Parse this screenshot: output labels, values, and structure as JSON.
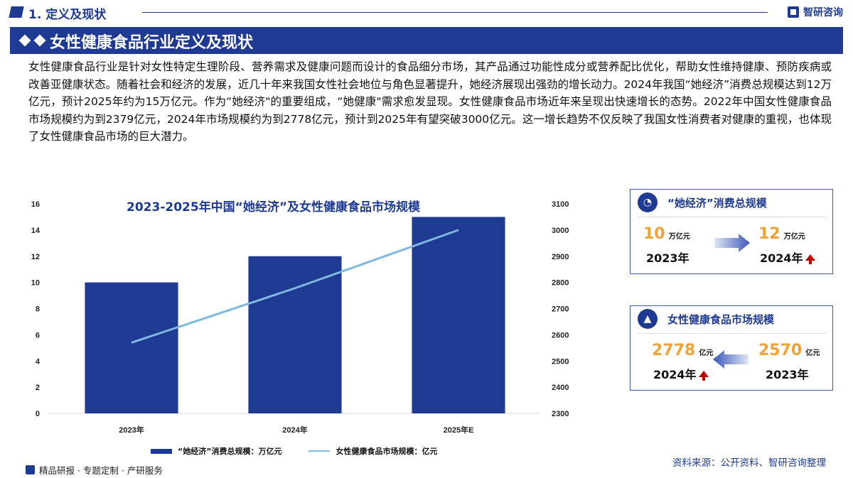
{
  "header": {
    "section_title": "1. 定义及现状",
    "brand": "智研咨询",
    "band_title": "女性健康食品行业定义及现状"
  },
  "paragraph": "女性健康食品行业是针对女性特定生理阶段、营养需求及健康问题而设计的食品细分市场，其产品通过功能性成分或营养配比优化，帮助女性维持健康、预防疾病或改善亚健康状态。随着社会和经济的发展，近几十年来我国女性社会地位与角色显著提升，她经济展现出强劲的增长动力。2024年我国“她经济”消费总规模达到12万亿元，预计2025年约为15万亿元。作为“她经济\"的重要组成，“她健康\"需求愈发显现。女性健康食品市场近年来呈现出快速增长的态势。2022年中国女性健康食品市场规模约为到2379亿元，2024年市场规模约为到2778亿元，预计到2025年有望突破3000亿元。这一增长趋势不仅反映了我国女性消费者对健康的重视，也体现了女性健康食品市场的巨大潜力。",
  "chart_data": {
    "type": "bar",
    "title": "2023-2025年中国“她经济”及女性健康食品市场规模",
    "categories": [
      "2023年",
      "2024年",
      "2025年E"
    ],
    "series": [
      {
        "name": "“她经济”消费总规模：万亿元",
        "type": "bar",
        "axis": "left",
        "values": [
          10,
          12,
          15
        ]
      },
      {
        "name": "女性健康食品市场规模：亿元",
        "type": "line",
        "axis": "right",
        "values": [
          2570,
          2778,
          3000
        ]
      }
    ],
    "ylim_left": [
      0,
      16
    ],
    "yticks_left": [
      "0",
      "2",
      "4",
      "6",
      "8",
      "10",
      "12",
      "14",
      "16"
    ],
    "ylim_right": [
      2300,
      3100
    ],
    "yticks_right": [
      "2300",
      "2400",
      "2500",
      "2600",
      "2700",
      "2800",
      "2900",
      "3000",
      "3100"
    ],
    "colors": {
      "bar": "#1f3a93",
      "line": "#7fb8de"
    },
    "grid": false,
    "legend_position": "bottom"
  },
  "card1": {
    "title": "“她经济”消费总规模",
    "left_value": "10",
    "left_unit": "万亿元",
    "left_year": "2023年",
    "right_value": "12",
    "right_unit": "万亿元",
    "right_year": "2024年"
  },
  "card2": {
    "title": "女性健康食品市场规模",
    "left_value": "2778",
    "left_unit": "亿元",
    "left_year": "2024年",
    "right_value": "2570",
    "right_unit": "亿元",
    "right_year": "2023年"
  },
  "footer": {
    "left": "精品研报 · 专题定制 · 产研服务",
    "source": "资料来源：公开资料、智研咨询整理"
  }
}
